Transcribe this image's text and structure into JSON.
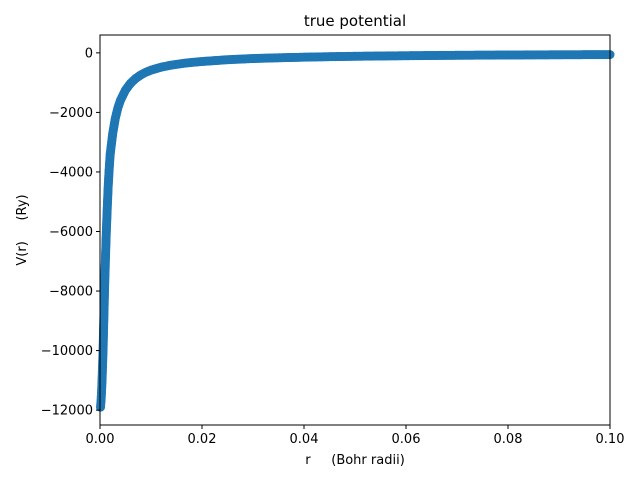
{
  "chart_data": {
    "type": "scatter",
    "title": "true potential",
    "xlabel": "r     (Bohr radii)",
    "ylabel": "V(r)     (Ry)",
    "xlim": [
      0.0,
      0.1
    ],
    "ylim": [
      -12500,
      600
    ],
    "xticks": [
      0.0,
      0.02,
      0.04,
      0.06,
      0.08,
      0.1
    ],
    "xtick_labels": [
      "0.00",
      "0.02",
      "0.04",
      "0.06",
      "0.08",
      "0.10"
    ],
    "yticks": [
      0,
      -2000,
      -4000,
      -6000,
      -8000,
      -10000,
      -12000
    ],
    "ytick_labels": [
      "0",
      "−2000",
      "−4000",
      "−6000",
      "−8000",
      "−10000",
      "−12000"
    ],
    "grid": false,
    "series": [
      {
        "color": "#1f77b4",
        "x": [
          0.0001,
          0.0002,
          0.0003,
          0.0004,
          0.0005,
          0.0006,
          0.0007,
          0.0008,
          0.0009,
          0.001,
          0.0012,
          0.0014,
          0.0016,
          0.0018,
          0.002,
          0.0025,
          0.003,
          0.0035,
          0.004,
          0.005,
          0.006,
          0.007,
          0.008,
          0.009,
          0.01,
          0.012,
          0.014,
          0.016,
          0.018,
          0.02,
          0.025,
          0.03,
          0.035,
          0.04,
          0.045,
          0.05,
          0.055,
          0.06,
          0.065,
          0.07,
          0.075,
          0.08,
          0.085,
          0.09,
          0.095,
          0.1
        ],
        "y": [
          -11900,
          -11700,
          -11400,
          -11000,
          -10500,
          -10000,
          -9300,
          -8600,
          -7900,
          -7300,
          -6200,
          -5300,
          -4500,
          -3900,
          -3400,
          -2700,
          -2200,
          -1850,
          -1600,
          -1250,
          -1020,
          -860,
          -740,
          -650,
          -580,
          -480,
          -410,
          -360,
          -320,
          -290,
          -230,
          -190,
          -165,
          -145,
          -128,
          -115,
          -105,
          -96,
          -88,
          -82,
          -76,
          -72,
          -68,
          -64,
          -61,
          -58
        ]
      }
    ]
  }
}
